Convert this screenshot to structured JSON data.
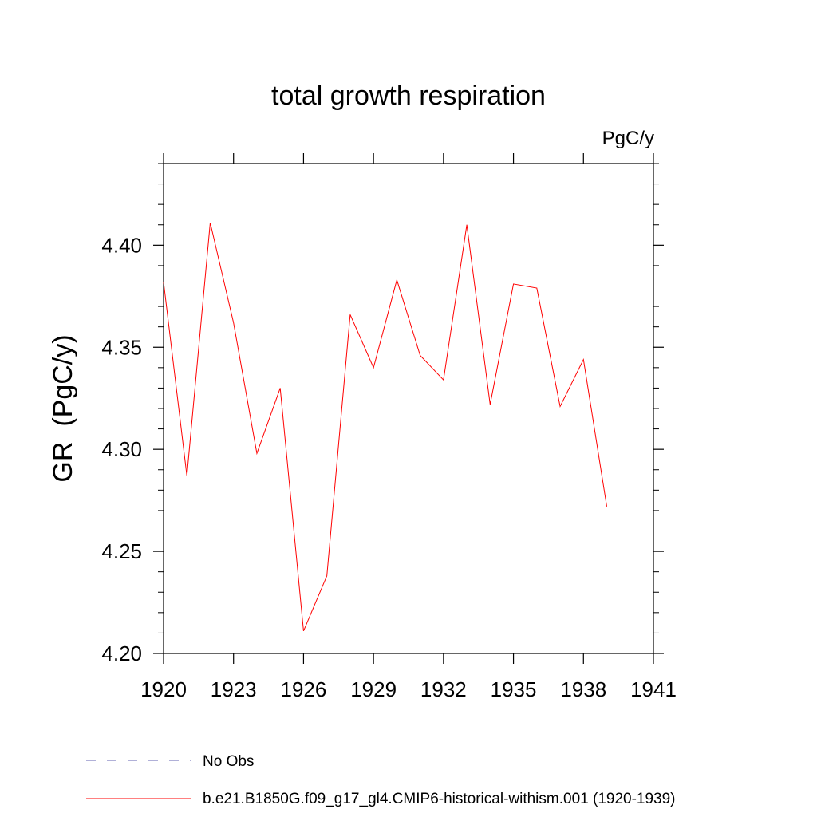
{
  "chart_data": {
    "type": "line",
    "title": "total growth respiration",
    "units": "PgC/y",
    "ylabel": "GR  (PgC/y)",
    "xlabel": "",
    "xlim": [
      1920,
      1941
    ],
    "ylim": [
      4.2,
      4.44
    ],
    "x_ticks": [
      1920,
      1923,
      1926,
      1929,
      1932,
      1935,
      1938,
      1941
    ],
    "y_ticks": [
      4.2,
      4.25,
      4.3,
      4.35,
      4.4
    ],
    "x_tick_labels": [
      "1920",
      "1923",
      "1926",
      "1929",
      "1932",
      "1935",
      "1938",
      "1941"
    ],
    "y_tick_labels": [
      "4.20",
      "4.25",
      "4.30",
      "4.35",
      "4.40"
    ],
    "grid": false,
    "series": [
      {
        "name": "b.e21.B1850G.f09_g17_gl4.CMIP6-historical-withism.001 (1920-1939)",
        "color": "#ff0000",
        "x": [
          1920,
          1921,
          1922,
          1923,
          1924,
          1925,
          1926,
          1927,
          1928,
          1929,
          1930,
          1931,
          1932,
          1933,
          1934,
          1935,
          1936,
          1937,
          1938,
          1939
        ],
        "y": [
          4.382,
          4.287,
          4.411,
          4.362,
          4.298,
          4.33,
          4.211,
          4.238,
          4.366,
          4.34,
          4.383,
          4.346,
          4.334,
          4.41,
          4.322,
          4.381,
          4.379,
          4.321,
          4.344,
          4.272
        ]
      }
    ],
    "legend": {
      "placement": "bottom-left",
      "entries": [
        {
          "label": "No Obs",
          "style": "dashed",
          "color": "#8080c0"
        },
        {
          "label": "b.e21.B1850G.f09_g17_gl4.CMIP6-historical-withism.001 (1920-1939)",
          "style": "solid",
          "color": "#ff0000"
        }
      ]
    }
  }
}
